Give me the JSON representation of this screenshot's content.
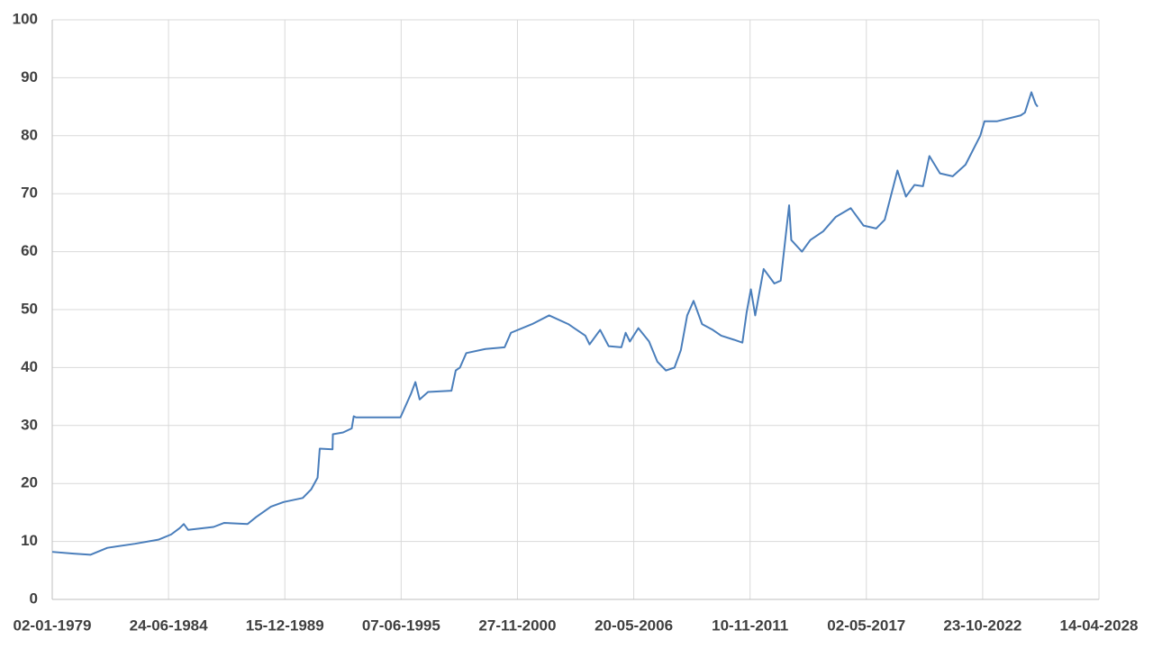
{
  "chart_data": {
    "type": "line",
    "color": "#4a7ebb",
    "grid": true,
    "xlim": [
      "02-01-1979",
      "14-04-2028"
    ],
    "xticks": [
      "02-01-1979",
      "24-06-1984",
      "15-12-1989",
      "07-06-1995",
      "27-11-2000",
      "20-05-2006",
      "10-11-2011",
      "02-05-2017",
      "23-10-2022",
      "14-04-2028"
    ],
    "ylim": [
      0,
      100
    ],
    "yticks": [
      0,
      10,
      20,
      30,
      40,
      50,
      60,
      70,
      80,
      90,
      100
    ],
    "x": [
      "02-01-1979",
      "01-01-1980",
      "19-10-1980",
      "07-08-1981",
      "24-11-1982",
      "01-01-1984",
      "07-08-1984",
      "01-01-1985",
      "14-03-1985",
      "26-05-1985",
      "07-08-1986",
      "07-02-1987",
      "14-03-1988",
      "07-08-1988",
      "20-04-1989",
      "24-11-1989",
      "19-10-1990",
      "14-03-1991",
      "01-07-1991",
      "07-08-1991",
      "14-03-1992",
      "20-03-1992",
      "12-09-1992",
      "07-02-1993",
      "14-03-1993",
      "20-04-1993",
      "26-05-1995",
      "24-11-1995",
      "07-02-1996",
      "20-04-1996",
      "12-09-1996",
      "19-10-1997",
      "01-01-1998",
      "14-03-1998",
      "01-07-1998",
      "26-05-1999",
      "20-04-2000",
      "07-08-2000",
      "07-08-2001",
      "26-05-2002",
      "20-04-2003",
      "07-02-2004",
      "20-04-2004",
      "19-10-2004",
      "14-03-2005",
      "19-10-2005",
      "01-01-2006",
      "14-03-2006",
      "07-08-2006",
      "07-02-2007",
      "01-07-2007",
      "24-11-2007",
      "20-04-2008",
      "07-08-2008",
      "24-11-2008",
      "14-03-2009",
      "07-08-2009",
      "07-02-2010",
      "01-07-2010",
      "07-02-2011",
      "01-07-2011",
      "12-09-2011",
      "24-11-2011",
      "07-02-2012",
      "01-07-2012",
      "01-01-2013",
      "20-04-2013",
      "12-09-2013",
      "19-10-2013",
      "20-04-2014",
      "12-09-2014",
      "20-04-2015",
      "24-11-2015",
      "07-08-2016",
      "14-03-2017",
      "19-10-2017",
      "14-03-2018",
      "19-10-2018",
      "14-03-2019",
      "07-08-2019",
      "01-01-2020",
      "20-04-2020",
      "19-10-2020",
      "26-05-2021",
      "01-01-2022",
      "12-09-2022",
      "24-11-2022",
      "01-07-2023",
      "07-08-2024",
      "19-10-2024",
      "07-02-2025",
      "20-04-2025",
      "26-05-2025"
    ],
    "values": [
      8.2,
      7.9,
      7.7,
      8.9,
      9.6,
      10.3,
      11.2,
      12.3,
      13.0,
      12.0,
      12.5,
      13.2,
      13.0,
      14.2,
      16.0,
      16.8,
      17.5,
      19.0,
      21.0,
      26.0,
      25.9,
      28.5,
      28.8,
      29.5,
      31.6,
      31.4,
      31.4,
      35.5,
      37.5,
      34.5,
      35.8,
      36.0,
      39.5,
      40.0,
      42.5,
      43.2,
      43.5,
      46.0,
      47.5,
      49.0,
      47.5,
      45.5,
      44.0,
      46.5,
      43.7,
      43.5,
      46.0,
      44.5,
      46.8,
      44.5,
      41.0,
      39.5,
      40.0,
      43.0,
      49.0,
      51.5,
      47.5,
      46.5,
      45.5,
      44.8,
      44.3,
      49.5,
      53.5,
      49.0,
      57.0,
      54.5,
      55.0,
      68.0,
      62.0,
      60.0,
      62.0,
      63.5,
      66.0,
      67.5,
      64.5,
      64.0,
      65.5,
      74.0,
      69.5,
      71.5,
      71.3,
      76.5,
      73.5,
      73.0,
      75.0,
      80.0,
      82.5,
      82.5,
      83.5,
      84.0,
      87.5,
      85.5,
      85.0
    ]
  }
}
